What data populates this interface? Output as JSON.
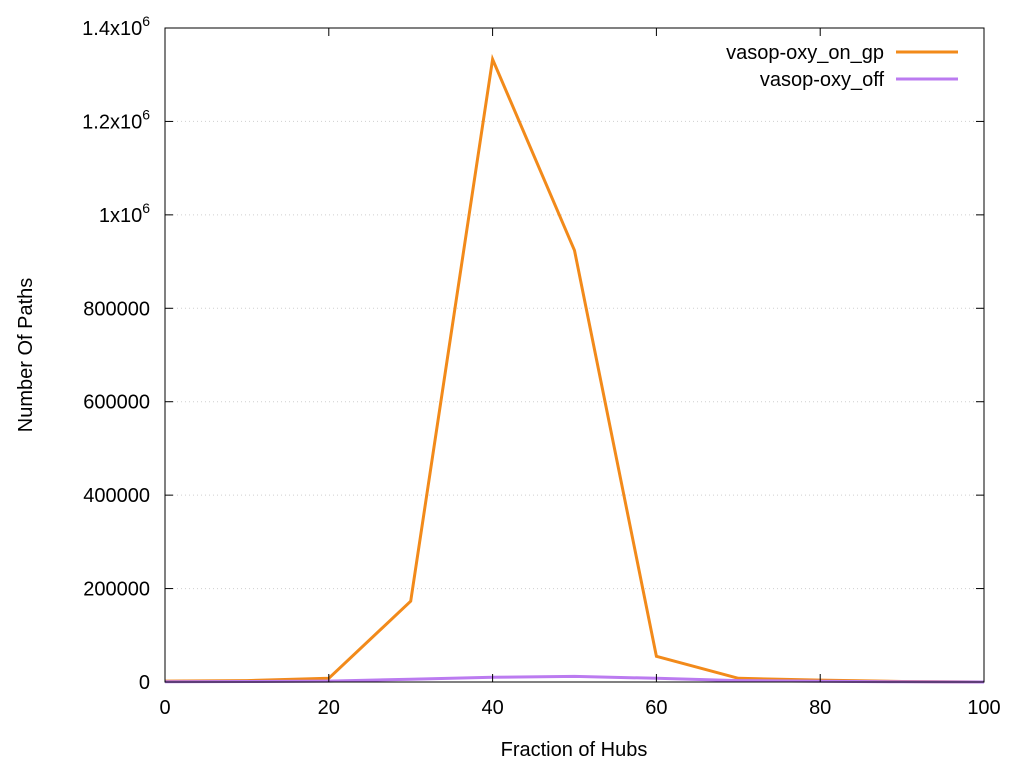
{
  "chart_data": {
    "type": "line",
    "xlabel": "Fraction of Hubs",
    "ylabel": "Number Of Paths",
    "xlim": [
      0,
      100
    ],
    "ylim": [
      0,
      1400000
    ],
    "x": [
      0,
      10,
      20,
      30,
      40,
      50,
      60,
      70,
      80,
      90,
      100
    ],
    "xticks": [
      {
        "value": 0,
        "label": "0"
      },
      {
        "value": 20,
        "label": "20"
      },
      {
        "value": 40,
        "label": "40"
      },
      {
        "value": 60,
        "label": "60"
      },
      {
        "value": 80,
        "label": "80"
      },
      {
        "value": 100,
        "label": "100"
      }
    ],
    "yticks": [
      {
        "value": 0,
        "label": "0",
        "base": "",
        "exp": ""
      },
      {
        "value": 200000,
        "label": "200000",
        "base": "",
        "exp": ""
      },
      {
        "value": 400000,
        "label": "400000",
        "base": "",
        "exp": ""
      },
      {
        "value": 600000,
        "label": "600000",
        "base": "",
        "exp": ""
      },
      {
        "value": 800000,
        "label": "800000",
        "base": "",
        "exp": ""
      },
      {
        "value": 1000000,
        "label": "",
        "base": "1x10",
        "exp": "6"
      },
      {
        "value": 1200000,
        "label": "",
        "base": "1.2x10",
        "exp": "6"
      },
      {
        "value": 1400000,
        "label": "",
        "base": "1.4x10",
        "exp": "6"
      }
    ],
    "grid": true,
    "legend_position": "top-right",
    "series": [
      {
        "name": "vasop-oxy_on_gp",
        "color": "#f28a1a",
        "values": [
          2000,
          3000,
          8000,
          173000,
          1333000,
          924000,
          55000,
          8000,
          4000,
          1000,
          0
        ]
      },
      {
        "name": "vasop-oxy_off",
        "color": "#bb7bf0",
        "values": [
          500,
          1000,
          2000,
          6000,
          10000,
          12000,
          8000,
          3000,
          1500,
          500,
          0
        ]
      }
    ]
  }
}
